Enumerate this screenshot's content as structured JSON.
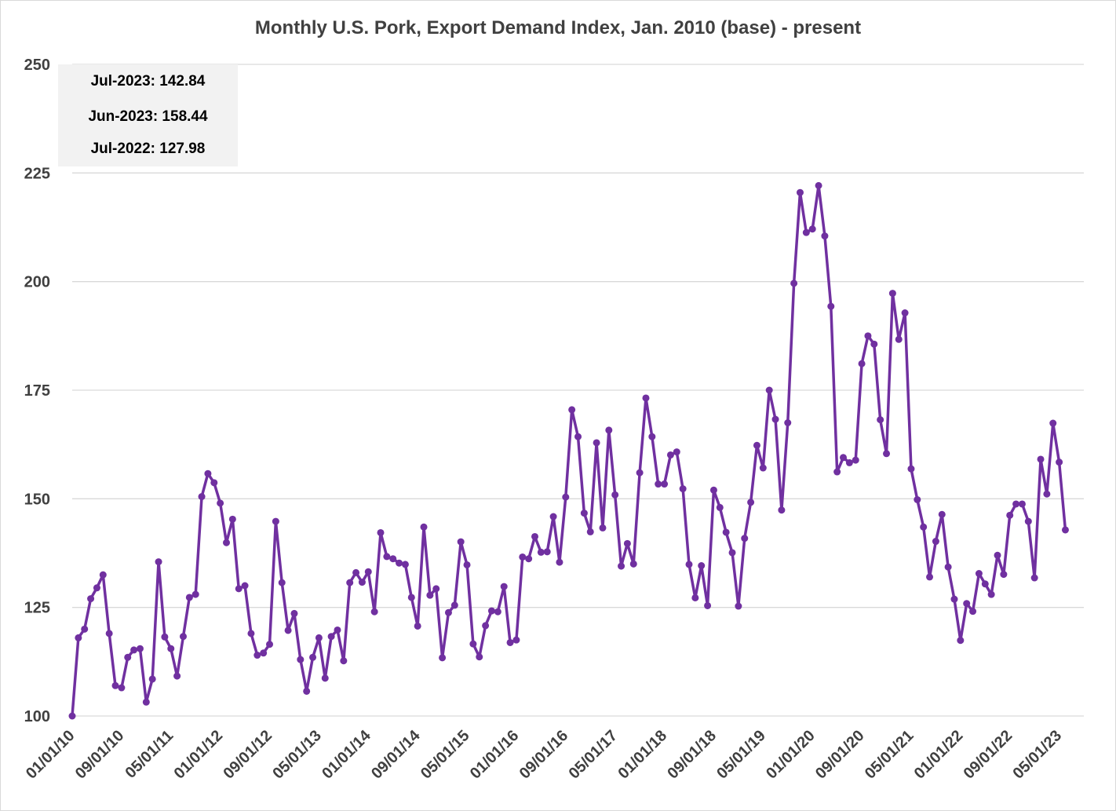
{
  "chart_data": {
    "type": "line",
    "title": "Monthly U.S. Pork, Export Demand Index, Jan. 2010 (base) - present",
    "xlabel": "",
    "ylabel": "",
    "ylim": [
      100,
      250
    ],
    "y_ticks": [
      "100",
      "125",
      "150",
      "175",
      "200",
      "225",
      "250"
    ],
    "x_tick_labels": [
      "01/01/10",
      "09/01/10",
      "05/01/11",
      "01/01/12",
      "09/01/12",
      "05/01/13",
      "01/01/14",
      "09/01/14",
      "05/01/15",
      "01/01/16",
      "09/01/16",
      "05/01/17",
      "01/01/18",
      "09/01/18",
      "05/01/19",
      "01/01/20",
      "09/01/20",
      "05/01/21",
      "01/01/22",
      "09/01/22",
      "05/01/23"
    ],
    "grid": "horizontal",
    "line_color": "#7030a0",
    "annotations": [
      "Jul-2023: 142.84",
      "Jun-2023: 158.44",
      "Jul-2022: 127.98"
    ],
    "series": [
      {
        "start": "2010-01",
        "values": [
          100,
          118,
          120,
          127,
          129.5,
          132.5,
          119,
          107,
          106.5,
          113.5,
          115.2,
          115.5,
          103.2,
          108.5,
          135.5,
          118.2,
          115.5,
          109.2,
          118.3,
          127.3,
          128,
          150.5,
          155.8,
          153.7,
          149,
          139.9,
          145.3,
          129.3,
          130,
          119,
          114,
          114.5,
          116.5,
          144.8,
          130.7,
          119.7,
          123.6,
          113,
          105.7,
          113.5,
          118,
          108.7,
          118.3,
          119.8,
          112.7,
          130.7,
          133,
          130.8,
          133.2,
          124,
          142.2,
          136.7,
          136.2,
          135.2,
          134.9,
          127.3,
          120.7,
          143.5,
          127.8,
          129.3,
          113.4,
          123.8,
          125.5,
          140.1,
          134.8,
          116.6,
          113.6,
          120.8,
          124.2,
          124,
          129.8,
          116.9,
          117.5,
          136.6,
          136.2,
          141.3,
          137.7,
          137.8,
          145.9,
          135.4,
          150.4,
          170.5,
          164.3,
          146.7,
          142.4,
          162.9,
          143.3,
          165.8,
          150.9,
          134.5,
          139.7,
          135,
          156,
          173.2,
          164.3,
          153.4,
          153.4,
          160.1,
          160.8,
          152.3,
          134.9,
          127.2,
          134.6,
          125.4,
          152,
          148,
          142.3,
          137.6,
          125.3,
          140.9,
          149.2,
          162.3,
          157.1,
          175,
          168.3,
          147.4,
          167.5,
          199.6,
          220.5,
          211.3,
          212.1,
          222.1,
          210.5,
          194.3,
          156.2,
          159.5,
          158.3,
          158.9,
          181.1,
          187.5,
          185.6,
          168.2,
          160.4,
          197.3,
          186.7,
          192.8,
          156.9,
          149.8,
          143.5,
          132,
          140.2,
          146.4,
          134.3,
          126.9,
          117.4,
          125.9,
          124.1,
          132.8,
          130.4,
          127.98,
          137,
          132.6,
          146.2,
          148.8,
          148.8,
          144.8,
          131.8,
          159.1,
          151.1,
          167.4,
          158.44,
          142.84
        ]
      }
    ]
  }
}
